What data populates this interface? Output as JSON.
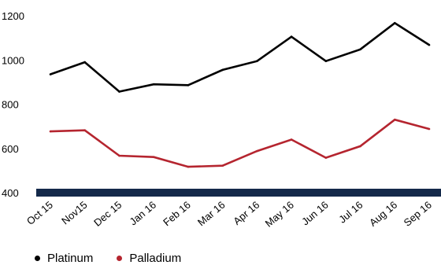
{
  "chart_data": {
    "type": "line",
    "categories": [
      "Oct 15",
      "Nov15",
      "Dec 15",
      "Jan 16",
      "Feb 16",
      "Mar 16",
      "Apr 16",
      "May 16",
      "Jun 16",
      "Jul 16",
      "Aug 16",
      "Sep 16"
    ],
    "series": [
      {
        "name": "Platinum",
        "color": "#000000",
        "values": [
          935,
          990,
          857,
          890,
          886,
          955,
          995,
          1105,
          995,
          1048,
          1167,
          1068
        ]
      },
      {
        "name": "Palladium",
        "color": "#b5252f",
        "values": [
          677,
          682,
          567,
          561,
          517,
          522,
          588,
          640,
          558,
          610,
          730,
          688
        ]
      }
    ],
    "yticks": [
      "400",
      "600",
      "800",
      "1000",
      "1200"
    ],
    "ylim": [
      400,
      1200
    ],
    "xlabel": "",
    "ylabel": "",
    "grid": false,
    "legend_position": "bottom-left",
    "baseline_color": "#14294a"
  }
}
